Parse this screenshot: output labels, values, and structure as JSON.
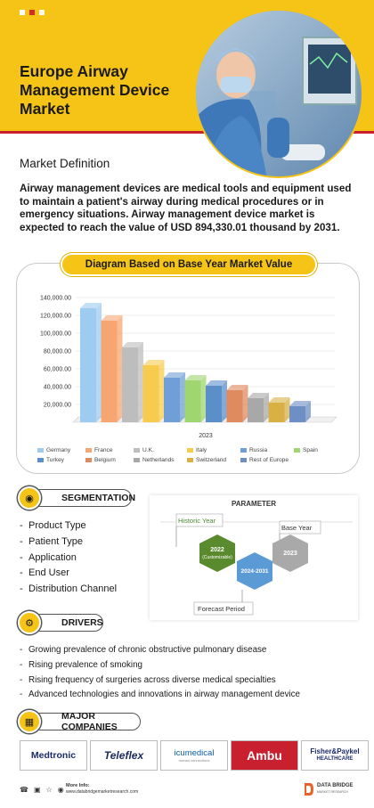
{
  "header": {
    "title": "Europe Airway Management Device Market"
  },
  "definition": {
    "heading": "Market Definition",
    "text": "Airway management devices are medical tools and equipment used to maintain a patient's airway during medical procedures or in emergency situations. Airway management device market is expected to reach the value of USD 894,330.01 thousand by 2031."
  },
  "chart_heading": "Diagram Based on Base Year Market Value",
  "chart_data": {
    "type": "bar",
    "categories": [
      "Germany",
      "France",
      "U.K.",
      "Italy",
      "Russia",
      "Spain",
      "Turkey",
      "Belgium",
      "Netherlands",
      "Switzerland",
      "Rest of Europe"
    ],
    "values": [
      128000,
      114000,
      84000,
      64000,
      50000,
      47000,
      41000,
      36000,
      27000,
      22000,
      18000
    ],
    "colors": [
      "#9ecbf0",
      "#f7a672",
      "#bdbdbd",
      "#f7cc4e",
      "#6f9fd6",
      "#9fd66f",
      "#5b8fc9",
      "#e08a5f",
      "#a8a8a8",
      "#d8b043",
      "#6d8fc4"
    ],
    "xlabel": "2023",
    "ylim": [
      0,
      140000
    ],
    "y_ticks": [
      "20,000.00",
      "40,000.00",
      "60,000.00",
      "80,000.00",
      "100,000.00",
      "120,000.00",
      "140,000.00"
    ],
    "y_tick_values": [
      20000,
      40000,
      60000,
      80000,
      100000,
      120000,
      140000
    ],
    "legend_position": "bottom"
  },
  "segmentation": {
    "label": "SEGMENTATION",
    "items": [
      "Product Type",
      "Patient Type",
      "Application",
      "End User",
      "Distribution Channel"
    ]
  },
  "parameter": {
    "title": "PARAMETER",
    "historic_label": "Historic Year",
    "historic_value": "2022",
    "historic_note": "(Customizable)",
    "forecast_value": "2024-2031",
    "base_label": "Base Year",
    "base_value": "2023",
    "forecast_label": "Forecast Period"
  },
  "drivers": {
    "label": "DRIVERS",
    "items": [
      "Growing prevalence of chronic obstructive pulmonary disease",
      "Rising prevalence of smoking",
      "Rising frequency of surgeries across diverse medical specialties",
      "Advanced technologies and innovations in airway management device"
    ]
  },
  "companies": {
    "label": "MAJOR COMPANIES",
    "logos": [
      "Medtronic",
      "Teleflex",
      "icumedical",
      "Ambu",
      "Fisher&Paykel"
    ],
    "logo_sub": [
      "",
      "",
      "human connections",
      "",
      "HEALTHCARE"
    ]
  },
  "footer": {
    "more_info": "More Info:",
    "url": "www.databridgemarketresearch.com",
    "brand": "DATA BRIDGE",
    "brand_sub": "MARKET RESEARCH"
  }
}
